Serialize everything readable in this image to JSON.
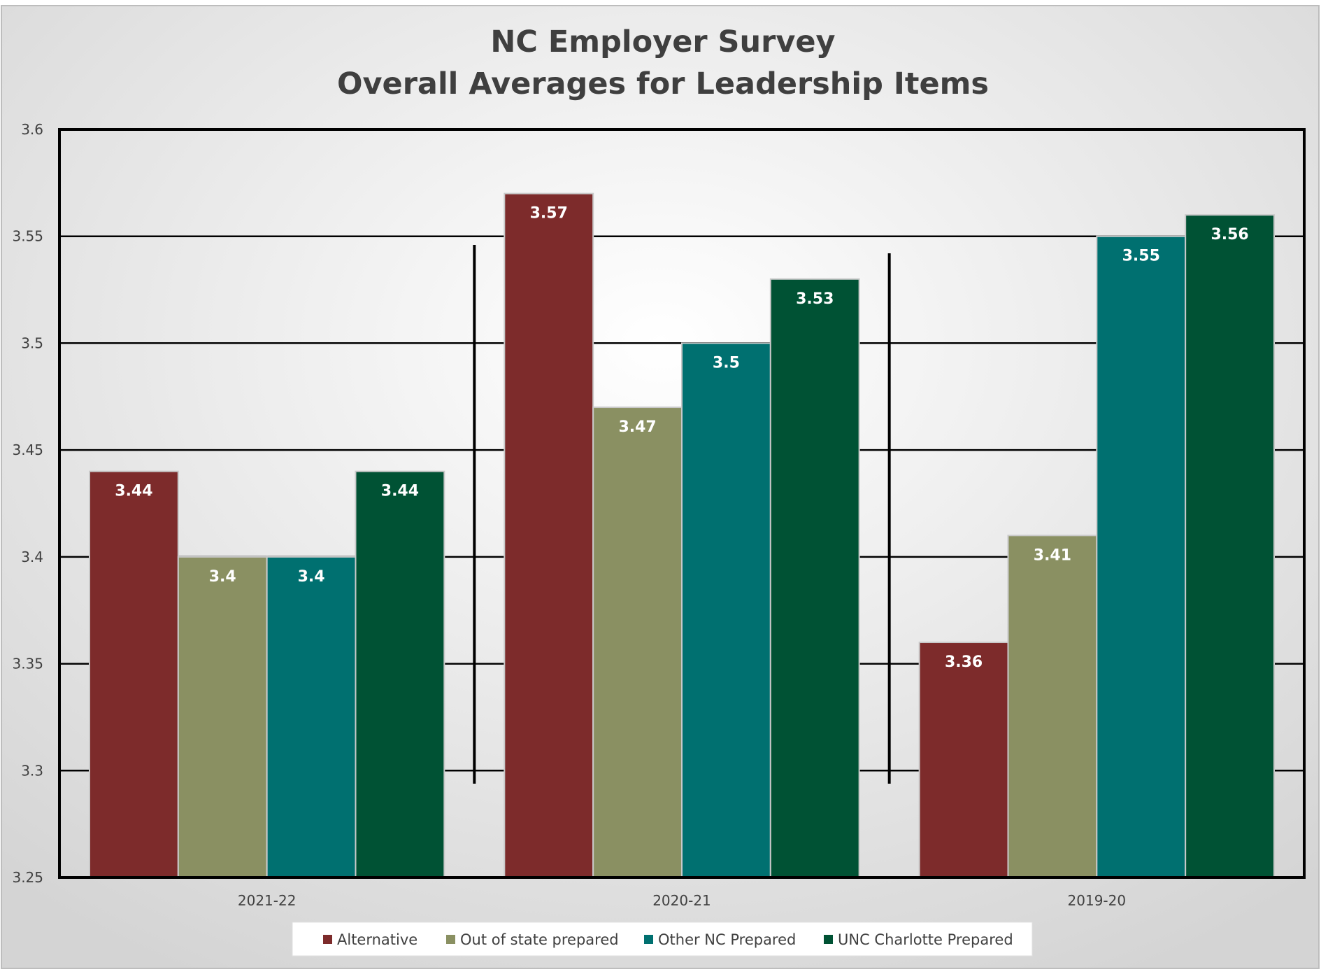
{
  "chart_data": {
    "type": "bar",
    "title": "NC Employer Survey",
    "subtitle": "Overall Averages for Leadership Items",
    "categories": [
      "2021-22",
      "2020-21",
      "2019-20"
    ],
    "series": [
      {
        "name": "Alternative",
        "color": "#7d2b2b",
        "values": [
          3.44,
          3.57,
          3.36
        ]
      },
      {
        "name": "Out of state prepared",
        "color": "#8a9062",
        "values": [
          3.4,
          3.47,
          3.41
        ]
      },
      {
        "name": "Other NC Prepared",
        "color": "#007070",
        "values": [
          3.4,
          3.5,
          3.55
        ]
      },
      {
        "name": "UNC Charlotte Prepared",
        "color": "#005234",
        "values": [
          3.44,
          3.53,
          3.56
        ]
      }
    ],
    "data_labels": [
      [
        "3.44",
        "3.57",
        "3.36"
      ],
      [
        "3.4",
        "3.47",
        "3.41"
      ],
      [
        "3.4",
        "3.5",
        "3.55"
      ],
      [
        "3.44",
        "3.53",
        "3.56"
      ]
    ],
    "y_ticks": [
      "3.25",
      "3.3",
      "3.35",
      "3.4",
      "3.45",
      "3.5",
      "3.55",
      "3.6"
    ],
    "ylim": [
      3.25,
      3.6
    ],
    "grid": true,
    "legend_position": "bottom",
    "background_gradient": [
      "#ffffff",
      "#d6d6d6"
    ]
  }
}
